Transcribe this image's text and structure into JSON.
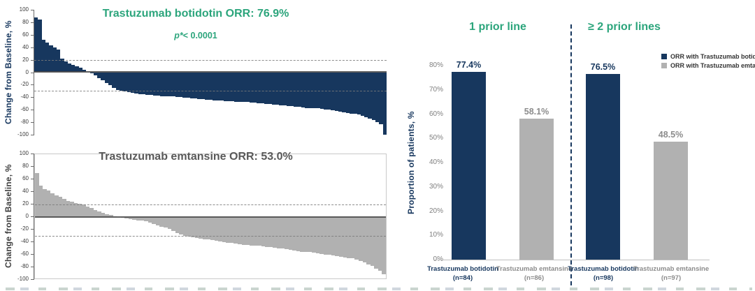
{
  "colors": {
    "botidotin_navy": "#17375E",
    "emtansine_gray": "#B1B1B1",
    "title_green": "#2CA57C",
    "title_dark_gray": "#595959",
    "axis_tick_gray": "#7F7F7F"
  },
  "chart_data": [
    {
      "id": "waterfall-trastuzumab-botidotin",
      "type": "bar",
      "subtype": "waterfall",
      "title": "Trastuzumab botidotin ORR: 76.9%",
      "p_prefix": "p*",
      "p_rest": "< 0.0001",
      "ylabel": "Change from Baseline, %",
      "ylim": [
        -100,
        100
      ],
      "yticks": [
        100,
        80,
        60,
        40,
        20,
        0,
        -20,
        -40,
        -60,
        -80,
        -100
      ],
      "reference_lines": [
        20,
        -30
      ],
      "bar_color": "#17375E",
      "values": [
        88,
        84,
        52,
        47,
        43,
        40,
        36,
        22,
        17,
        14,
        12,
        10,
        7,
        4,
        0,
        -2,
        -5,
        -9,
        -13,
        -17,
        -21,
        -25,
        -28,
        -30,
        -31,
        -32,
        -33,
        -34,
        -35,
        -35,
        -36,
        -36,
        -37,
        -37,
        -38,
        -38,
        -39,
        -39,
        -40,
        -40,
        -41,
        -41,
        -42,
        -42,
        -43,
        -43,
        -44,
        -44,
        -45,
        -45,
        -45,
        -46,
        -46,
        -46,
        -47,
        -47,
        -48,
        -48,
        -49,
        -49,
        -50,
        -50,
        -51,
        -51,
        -52,
        -52,
        -53,
        -53,
        -54,
        -54,
        -55,
        -55,
        -56,
        -57,
        -57,
        -58,
        -58,
        -59,
        -60,
        -60,
        -61,
        -62,
        -63,
        -64,
        -65,
        -66,
        -67,
        -68,
        -70,
        -72,
        -74,
        -77,
        -80,
        -83,
        -100
      ]
    },
    {
      "id": "waterfall-trastuzumab-emtansine",
      "type": "bar",
      "subtype": "waterfall",
      "title": "Trastuzumab emtansine ORR: 53.0%",
      "ylabel": "Change from Baseline, %",
      "ylim": [
        -100,
        100
      ],
      "yticks": [
        100,
        80,
        60,
        40,
        20,
        0,
        -20,
        -40,
        -60,
        -80,
        -100
      ],
      "reference_lines": [
        20,
        -30
      ],
      "bar_color": "#B1B1B1",
      "values": [
        70,
        50,
        45,
        42,
        38,
        35,
        32,
        29,
        26,
        24,
        22,
        21,
        20,
        17,
        14,
        11,
        9,
        7,
        5,
        3,
        1,
        0,
        -1,
        -2,
        -3,
        -4,
        -5,
        -6,
        -7,
        -9,
        -11,
        -13,
        -15,
        -17,
        -19,
        -22,
        -25,
        -28,
        -30,
        -31,
        -32,
        -33,
        -34,
        -35,
        -36,
        -37,
        -38,
        -39,
        -40,
        -41,
        -41,
        -42,
        -43,
        -44,
        -44,
        -45,
        -46,
        -46,
        -47,
        -48,
        -48,
        -49,
        -50,
        -50,
        -51,
        -52,
        -53,
        -54,
        -55,
        -55,
        -56,
        -57,
        -58,
        -59,
        -60,
        -60,
        -61,
        -62,
        -63,
        -64,
        -65,
        -66,
        -68,
        -70,
        -72,
        -75,
        -78,
        -82,
        -86,
        -91
      ]
    },
    {
      "id": "orr-by-prior-line",
      "type": "bar",
      "ylabel": "Proportion of patients, %",
      "ylim": [
        0,
        80
      ],
      "ytick_labels": [
        "0%",
        "10%",
        "20%",
        "30%",
        "40%",
        "50%",
        "60%",
        "70%",
        "80%"
      ],
      "groups": [
        {
          "title": "1 prior line",
          "bars": [
            {
              "series": "botidotin",
              "label": "Trastuzumab botidotin",
              "n_label": "(n=84)",
              "value": 77.4,
              "value_label": "77.4%"
            },
            {
              "series": "emtansine",
              "label": "Trastuzumab emtansine",
              "n_label": "(n=86)",
              "value": 58.1,
              "value_label": "58.1%"
            }
          ]
        },
        {
          "title": "≥ 2 prior lines",
          "bars": [
            {
              "series": "botidotin",
              "label": "Trastuzumab botidotin",
              "n_label": "(n=98)",
              "value": 76.5,
              "value_label": "76.5%"
            },
            {
              "series": "emtansine",
              "label": "Trastuzumab emtansine",
              "n_label": "(n=97)",
              "value": 48.5,
              "value_label": "48.5%"
            }
          ]
        }
      ],
      "legend": [
        {
          "series": "botidotin",
          "label": "ORR with Trastuzumab botidotin"
        },
        {
          "series": "emtansine",
          "label": "ORR with Trastuzumab emtansine"
        }
      ]
    }
  ]
}
